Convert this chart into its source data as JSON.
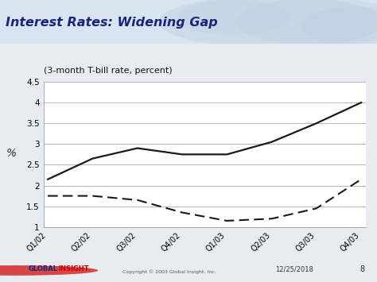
{
  "title": "Interest Rates: Widening Gap",
  "subtitle": "(3-month T-bill rate, percent)",
  "ylabel": "%",
  "categories": [
    "Q1/02",
    "Q2/02",
    "Q3/02",
    "Q4/02",
    "Q1/03",
    "Q2/03",
    "Q3/03",
    "Q4/03"
  ],
  "canada": [
    2.15,
    2.65,
    2.9,
    2.75,
    2.75,
    3.05,
    3.5,
    4.0
  ],
  "us": [
    1.75,
    1.75,
    1.65,
    1.35,
    1.15,
    1.2,
    1.45,
    2.15
  ],
  "ylim": [
    1.0,
    4.5
  ],
  "yticks": [
    1.0,
    1.5,
    2.0,
    2.5,
    3.0,
    3.5,
    4.0,
    4.5
  ],
  "ytick_labels": [
    "1",
    "1.5",
    "2",
    "2.5",
    "3",
    "3.5",
    "4",
    "4.5"
  ],
  "header_bg_left": "#dce6f0",
  "header_bg_right": "#b8c8dc",
  "header_stripe": "#8b0000",
  "header_text_color": "#1a237e",
  "plot_bg": "#ffffff",
  "chart_area_bg": "#f0f0f0",
  "line_color": "#1a1a1a",
  "footer_bg": "#c8d4dc",
  "date_text": "12/25/2018",
  "page_num": "8",
  "copyright_text": "Copyright © 2003 Global Insight, Inc.",
  "global_color": "#1a237e",
  "insight_color": "#cc0000"
}
